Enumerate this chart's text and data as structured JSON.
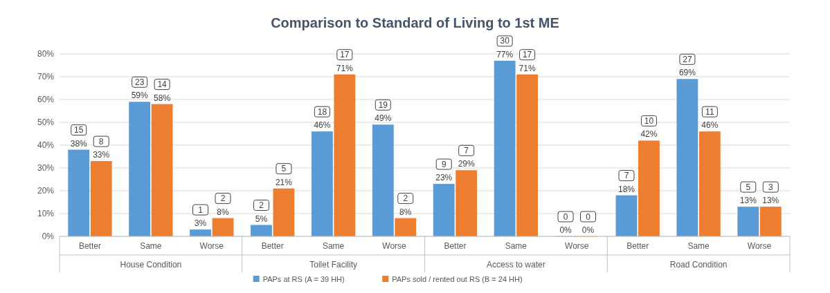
{
  "chart_data": {
    "type": "bar",
    "title": "Comparison  to Standard of Living to 1st ME",
    "categories": [
      "Better",
      "Same",
      "Worse",
      "Better",
      "Same",
      "Worse",
      "Better",
      "Same",
      "Worse",
      "Better",
      "Same",
      "Worse"
    ],
    "series": [
      {
        "name": "PAPs at RS (A = 39 HH)",
        "color": "#5b9bd5",
        "values": [
          38,
          59,
          3,
          5,
          46,
          49,
          23,
          77,
          0,
          18,
          69,
          13
        ],
        "value_labels": [
          "15\n38%",
          "23\n59%",
          "1\n3%",
          "2\n5%",
          "18\n46%",
          "19\n49%",
          "9\n23%",
          "30\n77%",
          "0\n0%",
          "7\n18%",
          "27\n69%",
          "5\n13%"
        ]
      },
      {
        "name": "PAPs sold / rented out RS (B = 24 HH)",
        "color": "#ed7d31",
        "values": [
          33,
          58,
          8,
          21,
          71,
          8,
          29,
          71,
          0,
          42,
          46,
          13
        ],
        "value_labels": [
          "8\n33%",
          "14\n58%",
          "2\n8%",
          "5\n21%",
          "17\n71%",
          "2\n8%",
          "7\n29%",
          "17\n71%",
          "0\n0%",
          "10\n42%",
          "11\n46%",
          "3\n13%"
        ]
      }
    ],
    "annotations": [
      "House Condition",
      "Toilet Facility",
      "Access to water",
      "Road Condition"
    ],
    "ylim": [
      0,
      80
    ],
    "yticks": [
      {
        "value": 0,
        "label": "0%"
      },
      {
        "value": 10,
        "label": "10%"
      },
      {
        "value": 20,
        "label": "20%"
      },
      {
        "value": 30,
        "label": "30%"
      },
      {
        "value": 40,
        "label": "40%"
      },
      {
        "value": 50,
        "label": "50%"
      },
      {
        "value": 60,
        "label": "60%"
      },
      {
        "value": 70,
        "label": "70%"
      },
      {
        "value": 80,
        "label": "80%"
      }
    ],
    "grid": "y",
    "legend": "bottom"
  }
}
